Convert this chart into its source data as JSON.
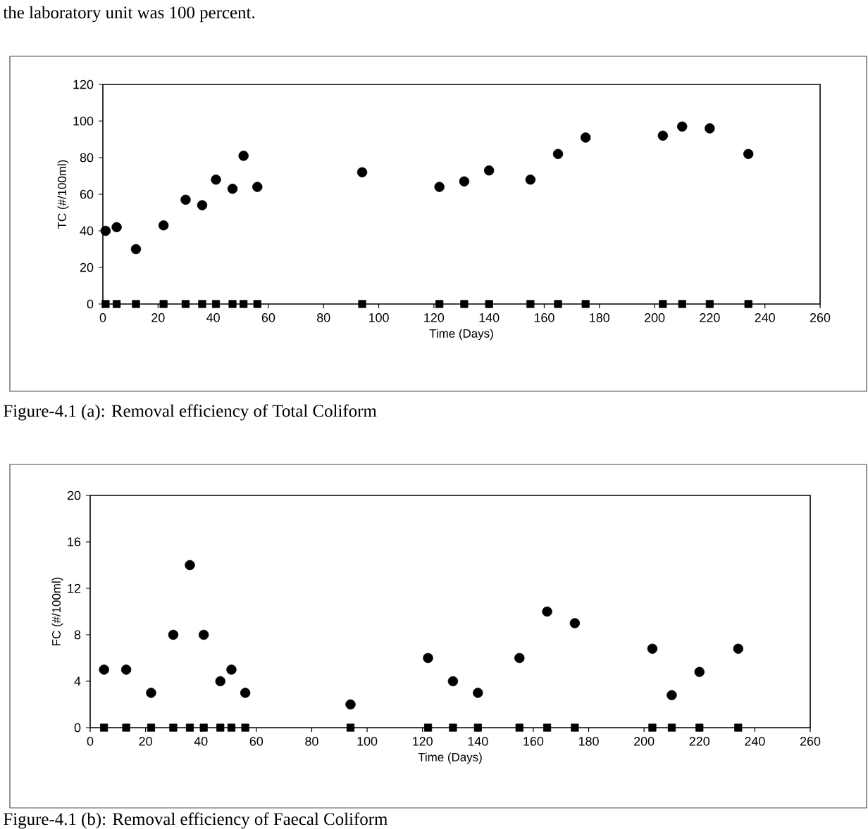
{
  "chart_data": [
    {
      "type": "scatter",
      "xlabel": "Time (Days)",
      "ylabel": "TC (#/100ml)",
      "xlim": [
        0,
        260
      ],
      "xticks": [
        0,
        20,
        40,
        60,
        80,
        100,
        120,
        140,
        160,
        180,
        200,
        220,
        240,
        260
      ],
      "ylim": [
        0,
        120
      ],
      "yticks": [
        0,
        20,
        40,
        60,
        80,
        100,
        120
      ],
      "grid": false,
      "annotations": [
        "the laboratory unit was 100 percent.",
        "Figure-4.1 (a): Removal efficiency of Total Coliform"
      ],
      "series": [
        {
          "color": "#000000",
          "marker": "circle",
          "x": [
            1,
            5,
            12,
            22,
            30,
            36,
            41,
            47,
            51,
            56,
            94,
            122,
            131,
            140,
            155,
            165,
            175,
            203,
            210,
            220,
            234
          ],
          "values": [
            40,
            42,
            30,
            43,
            57,
            54,
            68,
            63,
            81,
            64,
            72,
            64,
            67,
            73,
            68,
            82,
            91,
            92,
            97,
            96,
            82
          ]
        },
        {
          "color": "#000000",
          "marker": "square",
          "x": [
            1,
            5,
            12,
            22,
            30,
            36,
            41,
            47,
            51,
            56,
            94,
            122,
            131,
            140,
            155,
            165,
            175,
            203,
            210,
            220,
            234
          ],
          "values": [
            0,
            0,
            0,
            0,
            0,
            0,
            0,
            0,
            0,
            0,
            0,
            0,
            0,
            0,
            0,
            0,
            0,
            0,
            0,
            0,
            0
          ]
        }
      ]
    },
    {
      "type": "scatter",
      "xlabel": "Time (Days)",
      "ylabel": "FC (#/100ml)",
      "xlim": [
        0,
        260
      ],
      "xticks": [
        0,
        20,
        40,
        60,
        80,
        100,
        120,
        140,
        160,
        180,
        200,
        220,
        240,
        260
      ],
      "ylim": [
        0,
        20
      ],
      "yticks": [
        0,
        4,
        8,
        12,
        16,
        20
      ],
      "grid": false,
      "annotations": [
        "Figure-4.1 (b): Removal efficiency of Faecal Coliform"
      ],
      "series": [
        {
          "color": "#000000",
          "marker": "circle",
          "x": [
            5,
            13,
            22,
            30,
            36,
            41,
            47,
            51,
            56,
            94,
            122,
            131,
            140,
            155,
            165,
            175,
            203,
            210,
            220,
            234
          ],
          "values": [
            5,
            5,
            3,
            8,
            14,
            8,
            4,
            5,
            3,
            2,
            6,
            4,
            3,
            6,
            10,
            9,
            6.8,
            2.8,
            4.8,
            6.8
          ]
        },
        {
          "color": "#000000",
          "marker": "square",
          "x": [
            5,
            13,
            22,
            30,
            36,
            41,
            47,
            51,
            56,
            94,
            122,
            131,
            140,
            155,
            165,
            175,
            203,
            210,
            220,
            234
          ],
          "values": [
            0,
            0,
            0,
            0,
            0,
            0,
            0,
            0,
            0,
            0,
            0,
            0,
            0,
            0,
            0,
            0,
            0,
            0,
            0,
            0
          ]
        }
      ]
    }
  ]
}
